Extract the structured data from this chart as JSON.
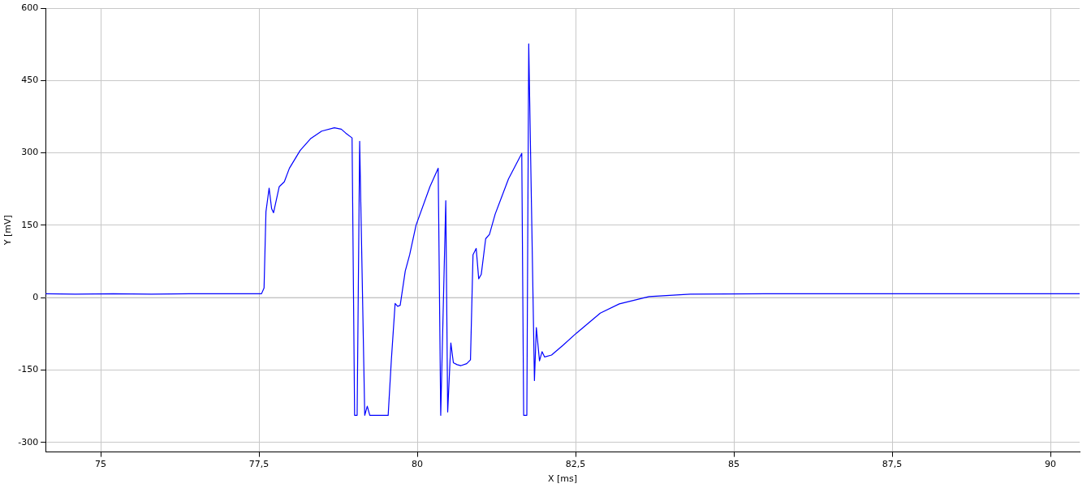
{
  "chart_data": {
    "type": "line",
    "xlabel": "X [ms]",
    "ylabel": "Y [mV]",
    "xlim": [
      74.13,
      90.46
    ],
    "ylim": [
      -320,
      600
    ],
    "xticks": [
      75,
      {
        "value": 77.5,
        "label": "77,5"
      },
      80,
      {
        "value": 82.5,
        "label": "82,5"
      },
      85,
      {
        "value": 87.5,
        "label": "87,5"
      },
      90
    ],
    "yticks": [
      -300,
      -150,
      0,
      150,
      300,
      450,
      600
    ],
    "grid": true,
    "legend": false,
    "marker": "none",
    "line_style": "solid",
    "ref_lines": [
      {
        "axis": "y",
        "value": 0,
        "color": "#c0c0c0"
      }
    ],
    "series": [
      {
        "color": "#0000ff",
        "x": [
          74.13,
          74.6,
          75.2,
          75.8,
          76.4,
          77.0,
          77.54,
          77.58,
          77.61,
          77.66,
          77.7,
          77.73,
          77.82,
          77.9,
          77.98,
          78.15,
          78.32,
          78.49,
          78.69,
          78.8,
          78.87,
          78.97,
          79.01,
          79.05,
          79.09,
          79.17,
          79.21,
          79.25,
          79.54,
          79.59,
          79.65,
          79.69,
          79.73,
          79.81,
          79.88,
          79.98,
          80.2,
          80.33,
          80.37,
          80.45,
          80.48,
          80.53,
          80.57,
          80.63,
          80.69,
          80.78,
          80.84,
          80.88,
          80.93,
          80.97,
          81.01,
          81.08,
          81.14,
          81.23,
          81.44,
          81.65,
          81.68,
          81.73,
          81.76,
          81.85,
          81.88,
          81.93,
          81.97,
          82.01,
          82.12,
          82.3,
          82.51,
          82.89,
          83.19,
          83.66,
          84.31,
          85.5,
          87.0,
          88.5,
          90.46
        ],
        "values": [
          8,
          7,
          8,
          7,
          8,
          8,
          8,
          20,
          178,
          227,
          184,
          176,
          230,
          240,
          268,
          305,
          330,
          345,
          352,
          349,
          341,
          331,
          -244,
          -244,
          324,
          -244,
          -225,
          -244,
          -244,
          -130,
          -12,
          -18,
          -16,
          55,
          89,
          150,
          230,
          268,
          -244,
          201,
          -237,
          -94,
          -135,
          -139,
          -141,
          -137,
          -129,
          89,
          102,
          39,
          48,
          122,
          131,
          173,
          246,
          299,
          -244,
          -244,
          526,
          -172,
          -62,
          -131,
          -112,
          -123,
          -119,
          -99,
          -74,
          -32,
          -13,
          2,
          7,
          8,
          8,
          8,
          8
        ]
      }
    ]
  }
}
